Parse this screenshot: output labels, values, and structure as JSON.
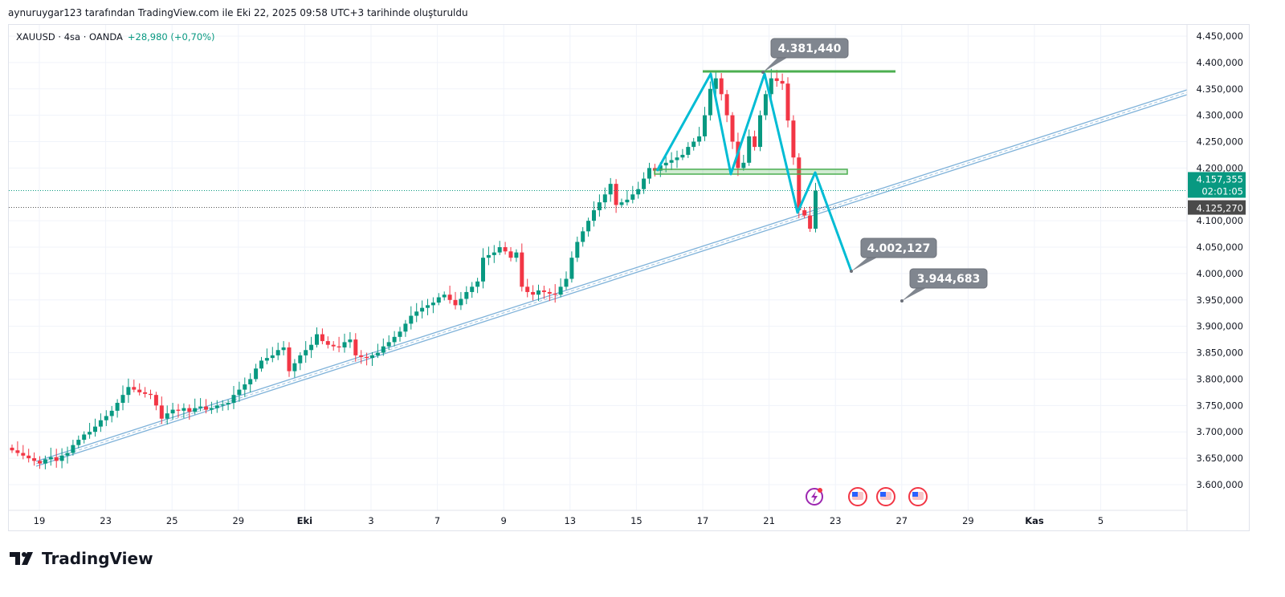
{
  "header": {
    "attribution": "aynuruygar123 tarafından TradingView.com ile Eki 22, 2025 09:58 UTC+3 tarihinde oluşturuldu"
  },
  "symbol": {
    "name": "XAUUSD · 4sa · OANDA",
    "change": "+28,980 (+0,70%)"
  },
  "branding": {
    "logo_text": "TradingView"
  },
  "colors": {
    "up": "#089981",
    "down": "#f23645",
    "trend": "#7fb2d9",
    "pattern": "#00bcd4",
    "level": "#4caf50"
  },
  "chart_data": {
    "type": "candlestick",
    "title": "XAUUSD · 4sa · OANDA",
    "ylim": [
      3570000,
      4470000
    ],
    "y_ticks": [
      "4.450,000",
      "4.400,000",
      "4.350,000",
      "4.300,000",
      "4.250,000",
      "4.200,000",
      "4.100,000",
      "4.050,000",
      "4.000,000",
      "3.950,000",
      "3.900,000",
      "3.850,000",
      "3.800,000",
      "3.750,000",
      "3.700,000",
      "3.650,000",
      "3.600,000"
    ],
    "y_tick_values": [
      4450000,
      4400000,
      4350000,
      4300000,
      4250000,
      4200000,
      4100000,
      4050000,
      4000000,
      3950000,
      3900000,
      3850000,
      3800000,
      3750000,
      3700000,
      3650000,
      3600000
    ],
    "x_ticks": [
      "19",
      "23",
      "25",
      "29",
      "Eki",
      "3",
      "7",
      "9",
      "13",
      "15",
      "17",
      "21",
      "23",
      "27",
      "29",
      "Kas",
      "5"
    ],
    "closes": [
      3665,
      3660,
      3655,
      3650,
      3645,
      3640,
      3648,
      3652,
      3645,
      3655,
      3660,
      3675,
      3685,
      3695,
      3700,
      3710,
      3722,
      3730,
      3740,
      3755,
      3770,
      3785,
      3780,
      3775,
      3772,
      3770,
      3750,
      3725,
      3735,
      3742,
      3740,
      3745,
      3738,
      3745,
      3748,
      3742,
      3745,
      3750,
      3752,
      3755,
      3770,
      3780,
      3790,
      3800,
      3820,
      3835,
      3840,
      3845,
      3855,
      3860,
      3815,
      3830,
      3845,
      3855,
      3865,
      3885,
      3872,
      3865,
      3862,
      3860,
      3870,
      3875,
      3845,
      3842,
      3840,
      3845,
      3850,
      3862,
      3870,
      3880,
      3890,
      3905,
      3920,
      3928,
      3935,
      3940,
      3945,
      3955,
      3960,
      3950,
      3940,
      3952,
      3965,
      3975,
      3985,
      4030,
      4035,
      4040,
      4050,
      4042,
      4030,
      4040,
      3975,
      3965,
      3960,
      3968,
      3965,
      3962,
      3960,
      3975,
      3990,
      4030,
      4060,
      4080,
      4100,
      4120,
      4135,
      4150,
      4170,
      4130,
      4135,
      4140,
      4150,
      4160,
      4180,
      4200,
      4195,
      4205,
      4210,
      4215,
      4220,
      4225,
      4240,
      4250,
      4260,
      4300,
      4350,
      4370,
      4340,
      4300,
      4250,
      4200,
      4210,
      4260,
      4240,
      4300,
      4340,
      4370,
      4365,
      4360,
      4290,
      4220,
      4120,
      4110,
      4085,
      4157
    ],
    "close_units": "thousand USD",
    "current_price": {
      "label": "4.157,355",
      "value": 4157355,
      "countdown": "02:01:05"
    },
    "prev_close": {
      "label": "4.125,270",
      "value": 4125270
    },
    "annotations": [
      {
        "label": "4.381,440",
        "value": 4381440
      },
      {
        "label": "4.002,127",
        "value": 4002127
      },
      {
        "label": "3.944,683",
        "value": 3944683
      }
    ],
    "events": [
      "earnings-flash-icon",
      "us-flag-icon",
      "us-flag-icon",
      "us-flag-icon"
    ]
  }
}
